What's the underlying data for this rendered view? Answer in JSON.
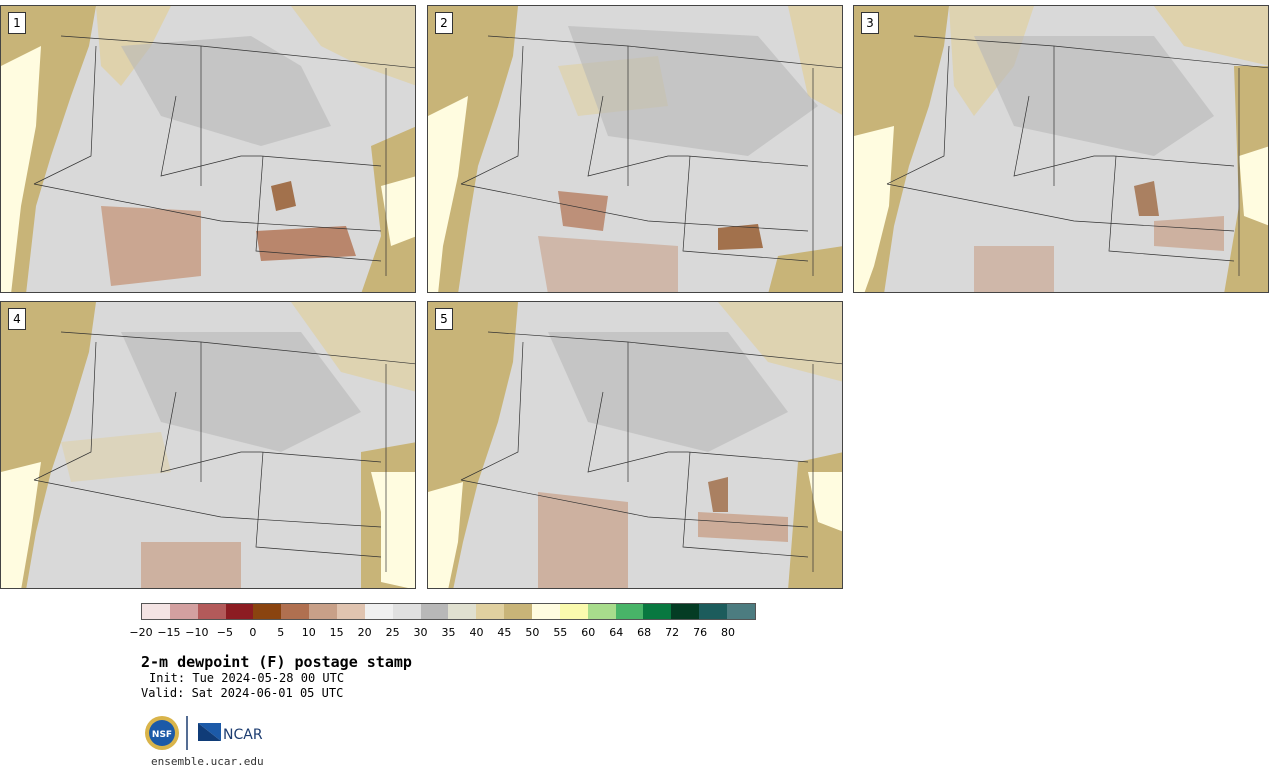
{
  "panels": [
    {
      "label": "1"
    },
    {
      "label": "2"
    },
    {
      "label": "3"
    },
    {
      "label": "4"
    },
    {
      "label": "5"
    }
  ],
  "colorbar": {
    "colors": [
      "#f4e4e4",
      "#d3a0a0",
      "#b35a5a",
      "#8c1c22",
      "#8a4410",
      "#b07050",
      "#c8a088",
      "#e0c4b0",
      "#f0f0f0",
      "#e0e0e0",
      "#b8b8b8",
      "#e0e0d0",
      "#e0d0a0",
      "#c8b478",
      "#fffce0",
      "#fafaae",
      "#a8dc8c",
      "#48b468",
      "#087840",
      "#043c24",
      "#1c5c5c",
      "#4c7c80"
    ],
    "tick_labels": [
      "−20",
      "−15",
      "−10",
      "−5",
      "0",
      "5",
      "10",
      "15",
      "20",
      "25",
      "30",
      "35",
      "40",
      "45",
      "50",
      "55",
      "60",
      "64",
      "68",
      "72",
      "76",
      "80"
    ]
  },
  "title": "2-m dewpoint (F) postage stamp",
  "init": "Init: Tue 2024-05-28 00 UTC",
  "valid": "Valid: Sat 2024-06-01 05 UTC",
  "logos": {
    "nsf": "NSF",
    "ncar": "NCAR"
  },
  "footer_url": "ensemble.ucar.edu"
}
